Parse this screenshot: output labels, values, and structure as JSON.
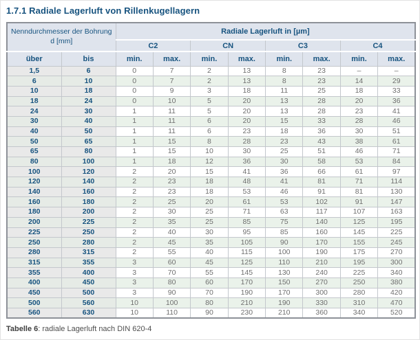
{
  "title": "1.7.1 Radiale Lagerluft von Rillenkugellagern",
  "table": {
    "corner_header": "Nenndurchmesser der Bohrung d [mm]",
    "main_header": "Radiale Lagerluft in [µm]",
    "class_headers": [
      "C2",
      "CN",
      "C3",
      "C4"
    ],
    "sub_headers": [
      "über",
      "bis",
      "min.",
      "max.",
      "min.",
      "max.",
      "min.",
      "max.",
      "min.",
      "max."
    ],
    "rows": [
      [
        "1,5",
        "6",
        "0",
        "7",
        "2",
        "13",
        "8",
        "23",
        "–",
        "–"
      ],
      [
        "6",
        "10",
        "0",
        "7",
        "2",
        "13",
        "8",
        "23",
        "14",
        "29"
      ],
      [
        "10",
        "18",
        "0",
        "9",
        "3",
        "18",
        "11",
        "25",
        "18",
        "33"
      ],
      [
        "18",
        "24",
        "0",
        "10",
        "5",
        "20",
        "13",
        "28",
        "20",
        "36"
      ],
      [
        "24",
        "30",
        "1",
        "11",
        "5",
        "20",
        "13",
        "28",
        "23",
        "41"
      ],
      [
        "30",
        "40",
        "1",
        "11",
        "6",
        "20",
        "15",
        "33",
        "28",
        "46"
      ],
      [
        "40",
        "50",
        "1",
        "11",
        "6",
        "23",
        "18",
        "36",
        "30",
        "51"
      ],
      [
        "50",
        "65",
        "1",
        "15",
        "8",
        "28",
        "23",
        "43",
        "38",
        "61"
      ],
      [
        "65",
        "80",
        "1",
        "15",
        "10",
        "30",
        "25",
        "51",
        "46",
        "71"
      ],
      [
        "80",
        "100",
        "1",
        "18",
        "12",
        "36",
        "30",
        "58",
        "53",
        "84"
      ],
      [
        "100",
        "120",
        "2",
        "20",
        "15",
        "41",
        "36",
        "66",
        "61",
        "97"
      ],
      [
        "120",
        "140",
        "2",
        "23",
        "18",
        "48",
        "41",
        "81",
        "71",
        "114"
      ],
      [
        "140",
        "160",
        "2",
        "23",
        "18",
        "53",
        "46",
        "91",
        "81",
        "130"
      ],
      [
        "160",
        "180",
        "2",
        "25",
        "20",
        "61",
        "53",
        "102",
        "91",
        "147"
      ],
      [
        "180",
        "200",
        "2",
        "30",
        "25",
        "71",
        "63",
        "117",
        "107",
        "163"
      ],
      [
        "200",
        "225",
        "2",
        "35",
        "25",
        "85",
        "75",
        "140",
        "125",
        "195"
      ],
      [
        "225",
        "250",
        "2",
        "40",
        "30",
        "95",
        "85",
        "160",
        "145",
        "225"
      ],
      [
        "250",
        "280",
        "2",
        "45",
        "35",
        "105",
        "90",
        "170",
        "155",
        "245"
      ],
      [
        "280",
        "315",
        "2",
        "55",
        "40",
        "115",
        "100",
        "190",
        "175",
        "270"
      ],
      [
        "315",
        "355",
        "3",
        "60",
        "45",
        "125",
        "110",
        "210",
        "195",
        "300"
      ],
      [
        "355",
        "400",
        "3",
        "70",
        "55",
        "145",
        "130",
        "240",
        "225",
        "340"
      ],
      [
        "400",
        "450",
        "3",
        "80",
        "60",
        "170",
        "150",
        "270",
        "250",
        "380"
      ],
      [
        "450",
        "500",
        "3",
        "90",
        "70",
        "190",
        "170",
        "300",
        "280",
        "420"
      ],
      [
        "500",
        "560",
        "10",
        "100",
        "80",
        "210",
        "190",
        "330",
        "310",
        "470"
      ],
      [
        "560",
        "630",
        "10",
        "110",
        "90",
        "230",
        "210",
        "360",
        "340",
        "520"
      ]
    ]
  },
  "caption": {
    "label": "Tabelle 6",
    "text": ": radiale Lagerluft nach DIN 620-4"
  },
  "colors": {
    "heading_blue": "#17537f",
    "header_bg": "#dfe4ed",
    "dim_col_bg": "#e9e9e9",
    "alt_row_bg": "#eaf2ea",
    "data_text": "#6f6f6f",
    "border_inner": "#c3c7cc",
    "border_outer": "#8d9198"
  }
}
